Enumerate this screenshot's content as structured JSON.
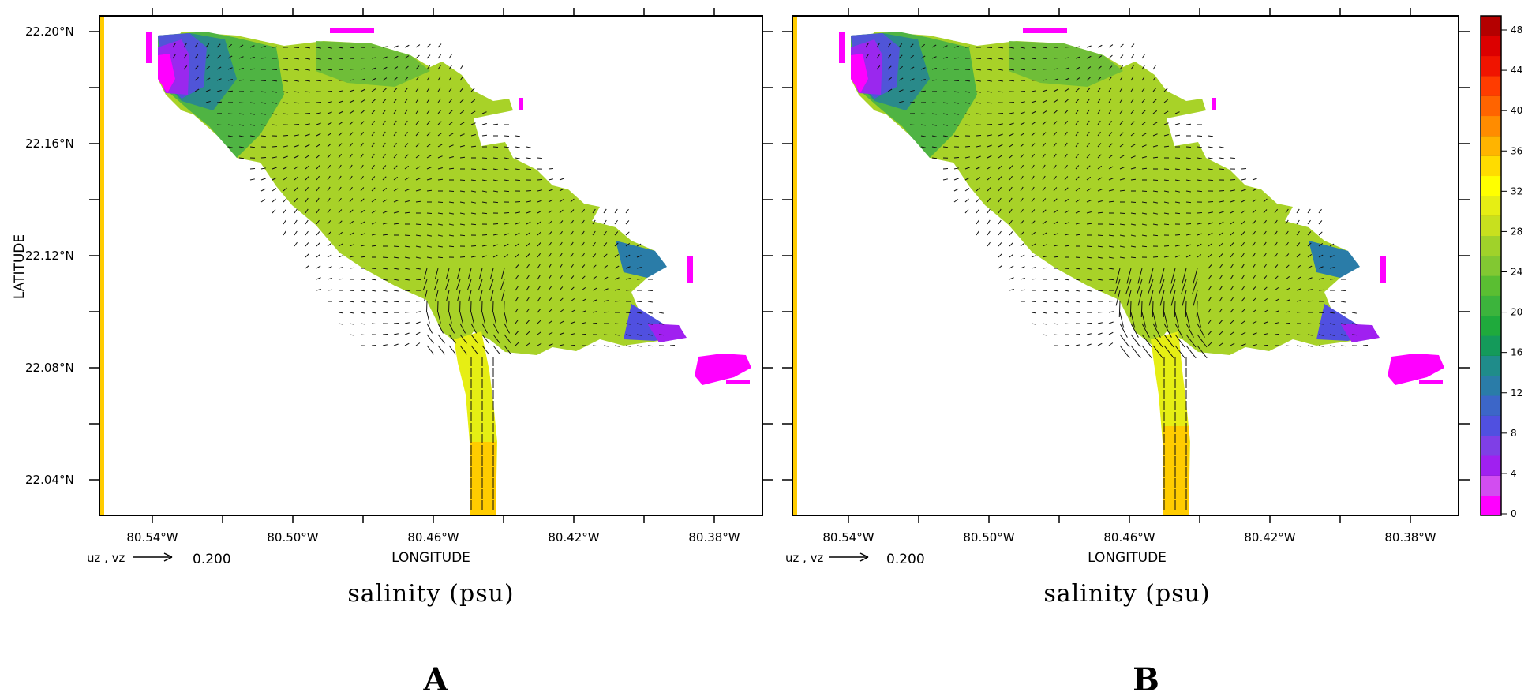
{
  "panels": [
    {
      "letter": "A",
      "caption": "salinity (psu)",
      "xlabel": "LONGITUDE",
      "ylabel": "LATITUDE",
      "vector_key": {
        "label": "uz , vz",
        "value": "0.200"
      },
      "scenario": "A"
    },
    {
      "letter": "B",
      "caption": "salinity (psu)",
      "xlabel": "LONGITUDE",
      "ylabel": "",
      "vector_key": {
        "label": "uz , vz",
        "value": "0.200"
      },
      "scenario": "B"
    }
  ],
  "axes": {
    "x_ticklabels": [
      "80.54°W",
      "80.50°W",
      "80.46°W",
      "80.42°W",
      "80.38°W"
    ],
    "y_ticklabels": [
      "22.20°N",
      "22.16°N",
      "22.12°N",
      "22.08°N",
      "22.04°N"
    ]
  },
  "colorbar": {
    "ticklabels": [
      "48",
      "44",
      "40",
      "36",
      "32",
      "28",
      "24",
      "20",
      "16",
      "12",
      "8",
      "4",
      "0"
    ],
    "colors": [
      "#ff00ff",
      "#d24df0",
      "#a020f0",
      "#7f3fe6",
      "#5050e0",
      "#3c66c8",
      "#2a7ca8",
      "#1f8c8a",
      "#149a5a",
      "#1faa3c",
      "#3cb43c",
      "#5abe32",
      "#82c832",
      "#a0d22a",
      "#c8e01e",
      "#e6ee14",
      "#ffff00",
      "#ffdc00",
      "#ffb400",
      "#ff8c00",
      "#ff6400",
      "#ff3c00",
      "#f01400",
      "#dc0000",
      "#b40000"
    ]
  }
}
